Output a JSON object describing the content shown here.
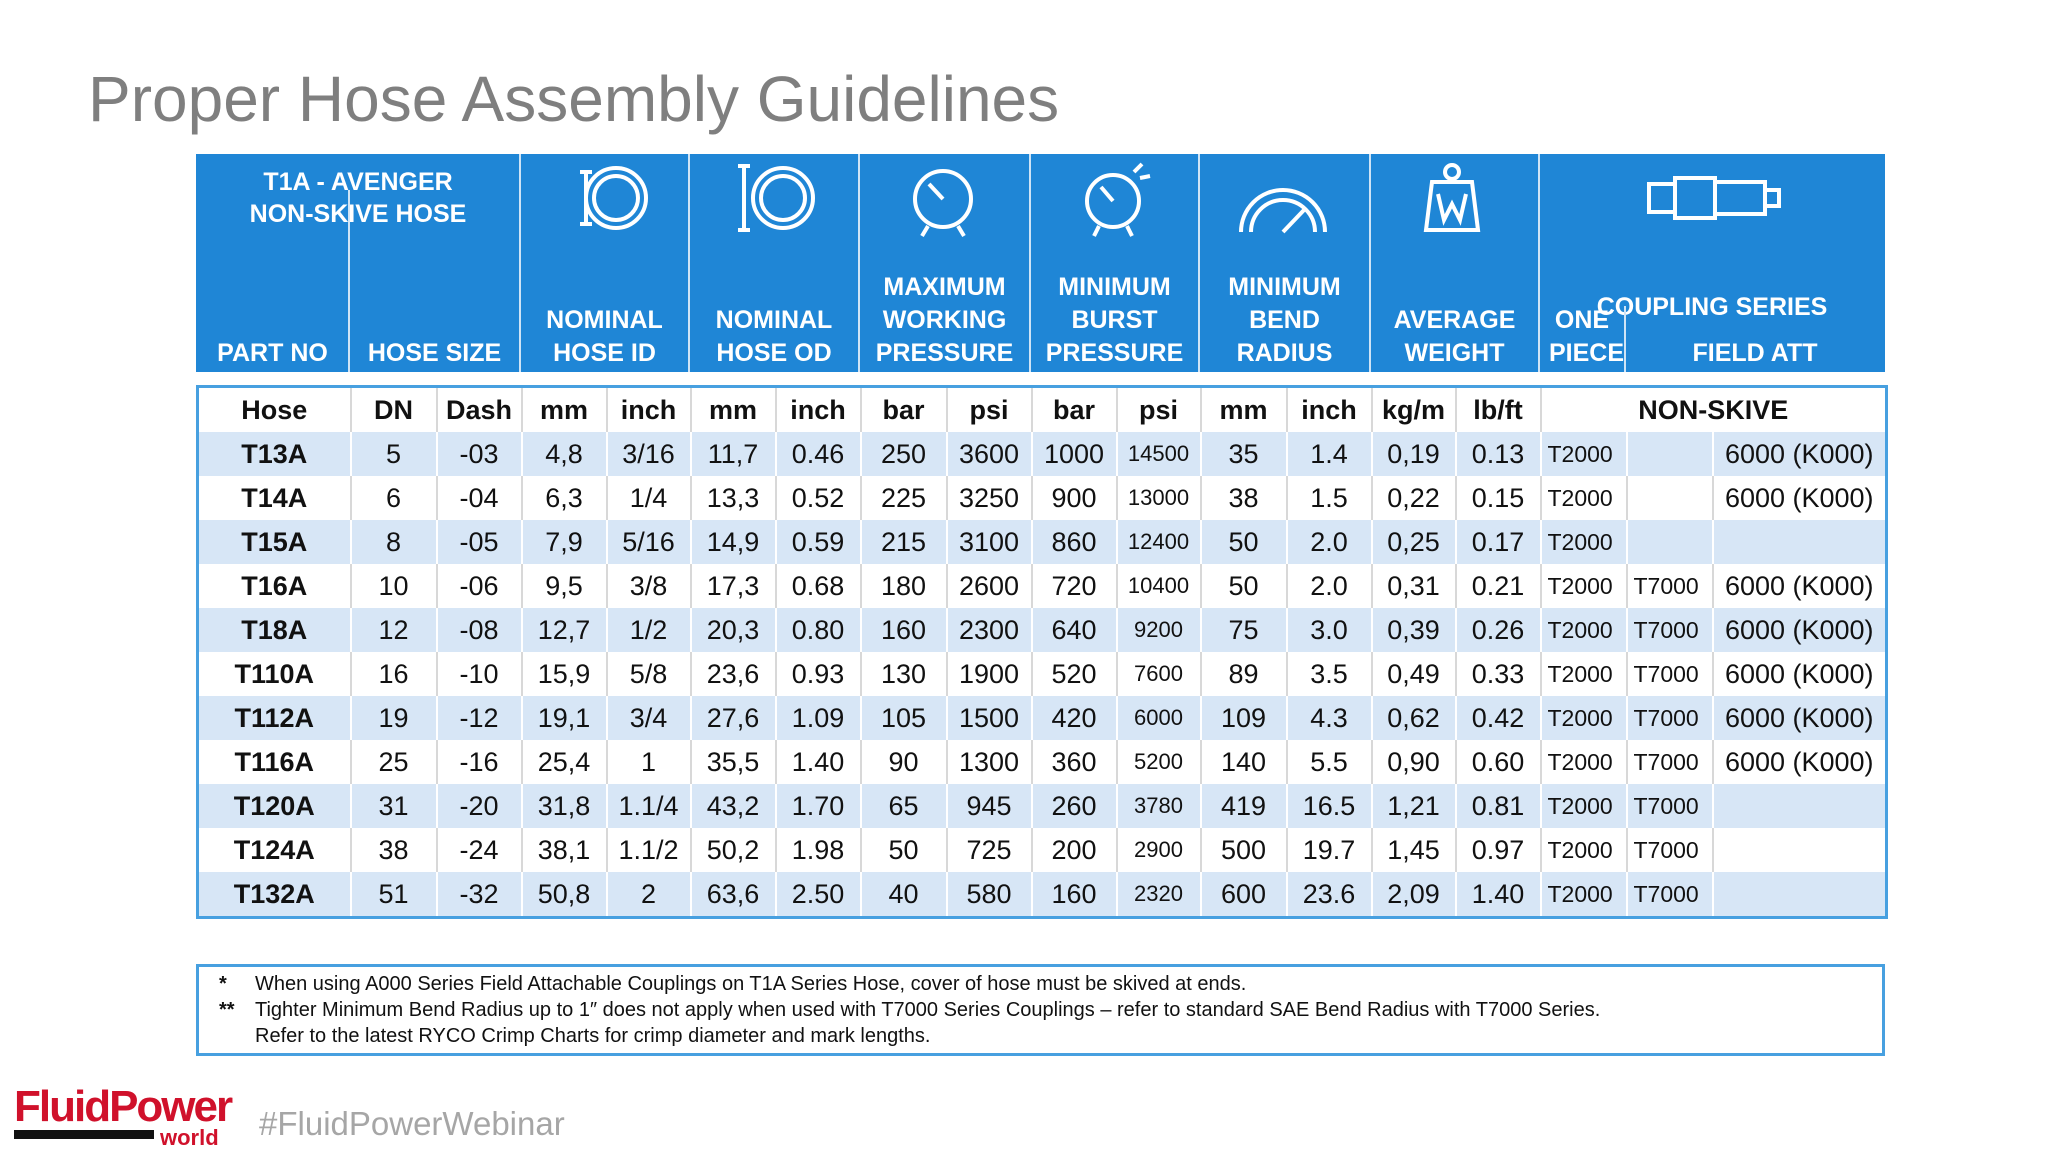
{
  "title": "Proper Hose Assembly Guidelines",
  "header": {
    "title_lines": [
      "T1A - AVENGER",
      "NON-SKIVE HOSE"
    ],
    "columns": [
      "PART NO",
      "HOSE SIZE",
      "NOMINAL HOSE ID",
      "NOMINAL HOSE OD",
      "MAXIMUM WORKING PRESSURE",
      "MINIMUM BURST PRESSURE",
      "MINIMUM BEND RADIUS",
      "AVERAGE WEIGHT",
      "COUPLING SERIES"
    ],
    "coupling_subcolumns": [
      "ONE PIECE",
      "FIELD ATT"
    ]
  },
  "table": {
    "units": [
      "Hose",
      "DN",
      "Dash",
      "mm",
      "inch",
      "mm",
      "inch",
      "bar",
      "psi",
      "bar",
      "psi",
      "mm",
      "inch",
      "kg/m",
      "lb/ft",
      "NON-SKIVE"
    ],
    "rows": [
      [
        "T13A",
        "5",
        "-03",
        "4,8",
        "3/16",
        "11,7",
        "0.46",
        "250",
        "3600",
        "1000",
        "14500",
        "35",
        "1.4",
        "0,19",
        "0.13",
        "T2000",
        null,
        "6000 (K000)"
      ],
      [
        "T14A",
        "6",
        "-04",
        "6,3",
        "1/4",
        "13,3",
        "0.52",
        "225",
        "3250",
        "900",
        "13000",
        "38",
        "1.5",
        "0,22",
        "0.15",
        "T2000",
        null,
        "6000 (K000)"
      ],
      [
        "T15A",
        "8",
        "-05",
        "7,9",
        "5/16",
        "14,9",
        "0.59",
        "215",
        "3100",
        "860",
        "12400",
        "50",
        "2.0",
        "0,25",
        "0.17",
        "T2000",
        null,
        null
      ],
      [
        "T16A",
        "10",
        "-06",
        "9,5",
        "3/8",
        "17,3",
        "0.68",
        "180",
        "2600",
        "720",
        "10400",
        "50",
        "2.0",
        "0,31",
        "0.21",
        "T2000",
        "T7000",
        "6000 (K000)"
      ],
      [
        "T18A",
        "12",
        "-08",
        "12,7",
        "1/2",
        "20,3",
        "0.80",
        "160",
        "2300",
        "640",
        "9200",
        "75",
        "3.0",
        "0,39",
        "0.26",
        "T2000",
        "T7000",
        "6000 (K000)"
      ],
      [
        "T110A",
        "16",
        "-10",
        "15,9",
        "5/8",
        "23,6",
        "0.93",
        "130",
        "1900",
        "520",
        "7600",
        "89",
        "3.5",
        "0,49",
        "0.33",
        "T2000",
        "T7000",
        "6000 (K000)"
      ],
      [
        "T112A",
        "19",
        "-12",
        "19,1",
        "3/4",
        "27,6",
        "1.09",
        "105",
        "1500",
        "420",
        "6000",
        "109",
        "4.3",
        "0,62",
        "0.42",
        "T2000",
        "T7000",
        "6000 (K000)"
      ],
      [
        "T116A",
        "25",
        "-16",
        "25,4",
        "1",
        "35,5",
        "1.40",
        "90",
        "1300",
        "360",
        "5200",
        "140",
        "5.5",
        "0,90",
        "0.60",
        "T2000",
        "T7000",
        "6000 (K000)"
      ],
      [
        "T120A",
        "31",
        "-20",
        "31,8",
        "1.1/4",
        "43,2",
        "1.70",
        "65",
        "945",
        "260",
        "3780",
        "419",
        "16.5",
        "1,21",
        "0.81",
        "T2000",
        "T7000",
        null
      ],
      [
        "T124A",
        "38",
        "-24",
        "38,1",
        "1.1/2",
        "50,2",
        "1.98",
        "50",
        "725",
        "200",
        "2900",
        "500",
        "19.7",
        "1,45",
        "0.97",
        "T2000",
        "T7000",
        null
      ],
      [
        "T132A",
        "51",
        "-32",
        "50,8",
        "2",
        "63,6",
        "2.50",
        "40",
        "580",
        "160",
        "2320",
        "600",
        "23.6",
        "2,09",
        "1.40",
        "T2000",
        "T7000",
        null
      ]
    ]
  },
  "footnotes": [
    {
      "marker": "*",
      "text": "When using A000 Series Field Attachable Couplings on T1A Series Hose, cover of hose must be skived at ends."
    },
    {
      "marker": "**",
      "text": "Tighter Minimum Bend Radius up to 1″ does not apply when used with T7000 Series Couplings – refer to standard SAE Bend Radius with T7000 Series."
    },
    {
      "text": "Refer to the latest RYCO Crimp Charts for crimp diameter and mark lengths."
    }
  ],
  "footer": {
    "logo_main": "FluidPower",
    "logo_sub": "world",
    "hashtag": "#FluidPowerWebinar"
  }
}
